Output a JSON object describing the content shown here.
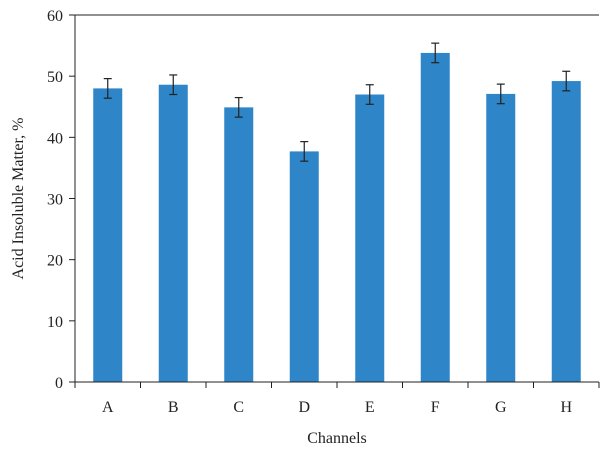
{
  "chart_data": {
    "type": "bar",
    "categories": [
      "A",
      "B",
      "C",
      "D",
      "E",
      "F",
      "G",
      "H"
    ],
    "values": [
      48.0,
      48.6,
      44.9,
      37.7,
      47.0,
      53.8,
      47.1,
      49.2
    ],
    "error": [
      1.6,
      1.6,
      1.6,
      1.6,
      1.6,
      1.6,
      1.6,
      1.6
    ],
    "xlabel": "Channels",
    "ylabel": "Acid Insoluble Matter, %",
    "ylim": [
      0,
      60
    ],
    "yticks": [
      0,
      10,
      20,
      30,
      40,
      50,
      60
    ],
    "grid": false,
    "bar_color": "#2e86c8",
    "error_color": "#222222"
  }
}
